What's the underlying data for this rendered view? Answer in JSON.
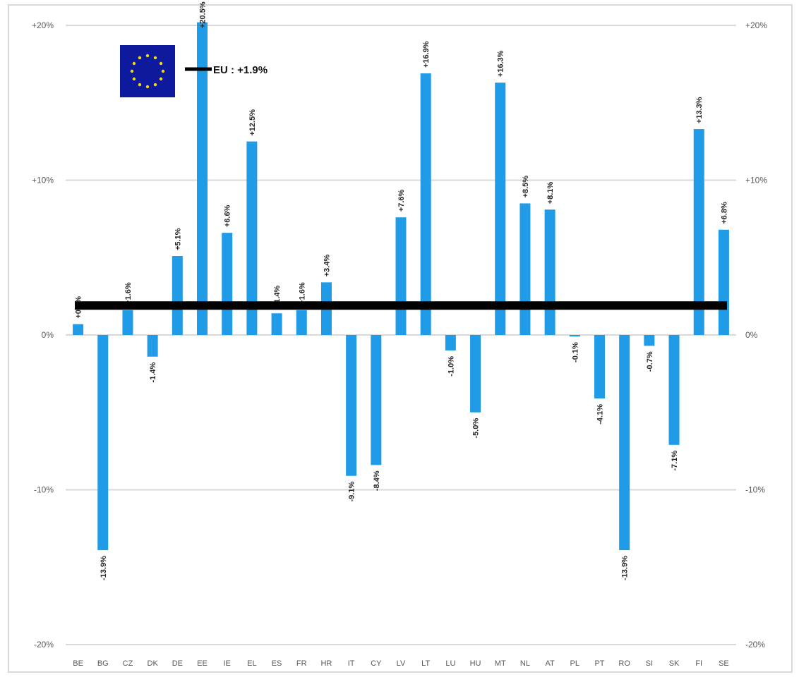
{
  "chart_data": {
    "type": "bar",
    "categories": [
      "BE",
      "BG",
      "CZ",
      "DK",
      "DE",
      "EE",
      "IE",
      "EL",
      "ES",
      "FR",
      "HR",
      "IT",
      "CY",
      "LV",
      "LT",
      "LU",
      "HU",
      "MT",
      "NL",
      "AT",
      "PL",
      "PT",
      "RO",
      "SI",
      "SK",
      "FI",
      "SE"
    ],
    "values": [
      0.7,
      -13.9,
      1.6,
      -1.4,
      5.1,
      20.5,
      6.6,
      12.5,
      1.4,
      1.6,
      3.4,
      -9.1,
      -8.4,
      7.6,
      16.9,
      -1.0,
      -5.0,
      16.3,
      8.5,
      8.1,
      -0.1,
      -4.1,
      -13.9,
      -0.7,
      -7.1,
      13.3,
      6.8
    ],
    "value_labels": [
      "+0.7%",
      "-13.9%",
      "+1.6%",
      "-1.4%",
      "+5.1%",
      "+20.5%",
      "+6.6%",
      "+12.5%",
      "+1.4%",
      "+1.6%",
      "+3.4%",
      "-9.1%",
      "-8.4%",
      "+7.6%",
      "+16.9%",
      "-1.0%",
      "-5.0%",
      "+16.3%",
      "+8.5%",
      "+8.1%",
      "-0.1%",
      "-4.1%",
      "-13.9%",
      "-0.7%",
      "-7.1%",
      "+13.3%",
      "+6.8%"
    ],
    "ylim": [
      -20,
      20
    ],
    "yticks": [
      -20,
      -10,
      0,
      10,
      20
    ],
    "ytick_labels": [
      "-20%",
      "-10%",
      "0%",
      "+10%",
      "+20%"
    ],
    "reference_line": {
      "label": "EU : +1.9%",
      "value": 1.9
    },
    "grid": true,
    "colors": {
      "bar": "#1f9be8",
      "reference": "#000000",
      "grid": "#d9d9d9",
      "flag": "#0d1a9e",
      "stars": "#f5d90a"
    }
  }
}
